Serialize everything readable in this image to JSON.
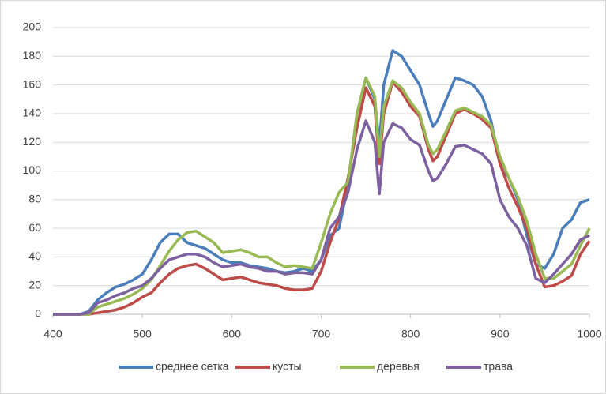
{
  "chart_data": {
    "type": "line",
    "x": [
      400,
      410,
      420,
      430,
      440,
      450,
      460,
      470,
      480,
      490,
      500,
      510,
      520,
      530,
      540,
      550,
      560,
      570,
      580,
      590,
      600,
      610,
      620,
      630,
      640,
      650,
      660,
      670,
      680,
      690,
      700,
      710,
      720,
      730,
      740,
      750,
      760,
      765,
      770,
      780,
      790,
      800,
      810,
      820,
      825,
      830,
      840,
      850,
      860,
      870,
      880,
      890,
      900,
      910,
      920,
      930,
      940,
      950,
      960,
      970,
      980,
      990,
      1000
    ],
    "series": [
      {
        "name": "среднее сетка",
        "color": "#4a7ebb",
        "values": [
          0,
          0,
          0,
          0,
          2,
          10,
          15,
          19,
          21,
          24,
          28,
          38,
          50,
          56,
          56,
          50,
          48,
          46,
          42,
          38,
          36,
          36,
          34,
          33,
          32,
          30,
          29,
          30,
          32,
          30,
          38,
          55,
          60,
          90,
          140,
          165,
          150,
          118,
          160,
          184,
          180,
          170,
          160,
          140,
          131,
          135,
          150,
          165,
          163,
          160,
          152,
          135,
          105,
          95,
          80,
          55,
          35,
          32,
          42,
          60,
          66,
          78,
          80
        ]
      },
      {
        "name": "кусты",
        "color": "#be4b48",
        "values": [
          0,
          0,
          0,
          0,
          0,
          1,
          2,
          3,
          5,
          8,
          12,
          15,
          22,
          28,
          32,
          34,
          35,
          32,
          28,
          24,
          25,
          26,
          24,
          22,
          21,
          20,
          18,
          17,
          17,
          18,
          30,
          50,
          67,
          95,
          130,
          158,
          145,
          105,
          140,
          162,
          155,
          145,
          138,
          115,
          107,
          110,
          125,
          140,
          143,
          140,
          136,
          130,
          105,
          88,
          75,
          60,
          35,
          19,
          20,
          23,
          27,
          42,
          51
        ]
      },
      {
        "name": "деревья",
        "color": "#98b954",
        "values": [
          0,
          0,
          0,
          0,
          0,
          5,
          7,
          9,
          11,
          14,
          18,
          24,
          34,
          44,
          52,
          57,
          58,
          54,
          50,
          43,
          44,
          45,
          43,
          40,
          40,
          36,
          33,
          34,
          33,
          32,
          50,
          70,
          85,
          92,
          140,
          165,
          152,
          110,
          145,
          163,
          158,
          148,
          140,
          118,
          112,
          115,
          128,
          142,
          144,
          141,
          138,
          132,
          110,
          95,
          82,
          65,
          42,
          25,
          25,
          30,
          35,
          48,
          60
        ]
      },
      {
        "name": "трава",
        "color": "#7d60a0",
        "values": [
          0,
          0,
          0,
          0,
          1,
          8,
          10,
          13,
          15,
          18,
          20,
          25,
          32,
          38,
          40,
          42,
          42,
          40,
          36,
          33,
          34,
          35,
          33,
          32,
          30,
          30,
          28,
          29,
          29,
          28,
          38,
          60,
          68,
          85,
          115,
          135,
          120,
          84,
          120,
          133,
          130,
          122,
          118,
          100,
          93,
          95,
          105,
          117,
          118,
          115,
          112,
          105,
          80,
          68,
          60,
          48,
          25,
          22,
          28,
          35,
          42,
          52,
          55
        ]
      }
    ],
    "xlim": [
      400,
      1000
    ],
    "xticks": [
      400,
      500,
      600,
      700,
      800,
      900,
      1000
    ],
    "ylim": [
      0,
      200
    ],
    "yticks": [
      0,
      20,
      40,
      60,
      80,
      100,
      120,
      140,
      160,
      180,
      200
    ],
    "grid": true,
    "legend": "bottom"
  }
}
